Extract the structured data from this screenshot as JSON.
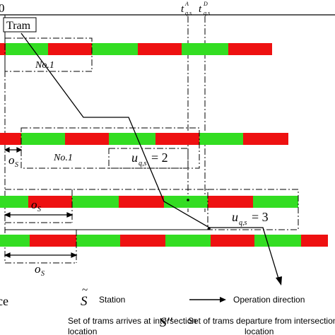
{
  "labels": {
    "origin": "0",
    "tram": "Tram",
    "no1_row1": "No.1",
    "no1_row2": "No.1",
    "os_row2": "o",
    "os_row3": "o",
    "os_row4": "o",
    "os_sub": "S",
    "uqs2_u": "u",
    "uqs2_sub": "q,s",
    "uqs2_eq": "= 2",
    "uqs3_u": "u",
    "uqs3_sub": "q,s",
    "uqs3_eq": "= 3",
    "tA_t": "t",
    "tA_sup": "A",
    "tA_sub": "q,s",
    "tD_t": "t",
    "tD_sup": "D",
    "tD_sub": "q,s"
  },
  "legend": {
    "partial_left": "ce",
    "station_symbol": "S",
    "station_tilde": "~",
    "station_label": "Station",
    "direction_label": "Operation direction",
    "arrives_line1": "Set of trams arrives at intersection",
    "arrives_line2": "location",
    "departs_symbol": "S''",
    "departs_line1": "Set of trams departure from intersection",
    "departs_line2": "location"
  },
  "colors": {
    "green": "#33dd22",
    "red": "#ee1111",
    "line": "#000000"
  }
}
